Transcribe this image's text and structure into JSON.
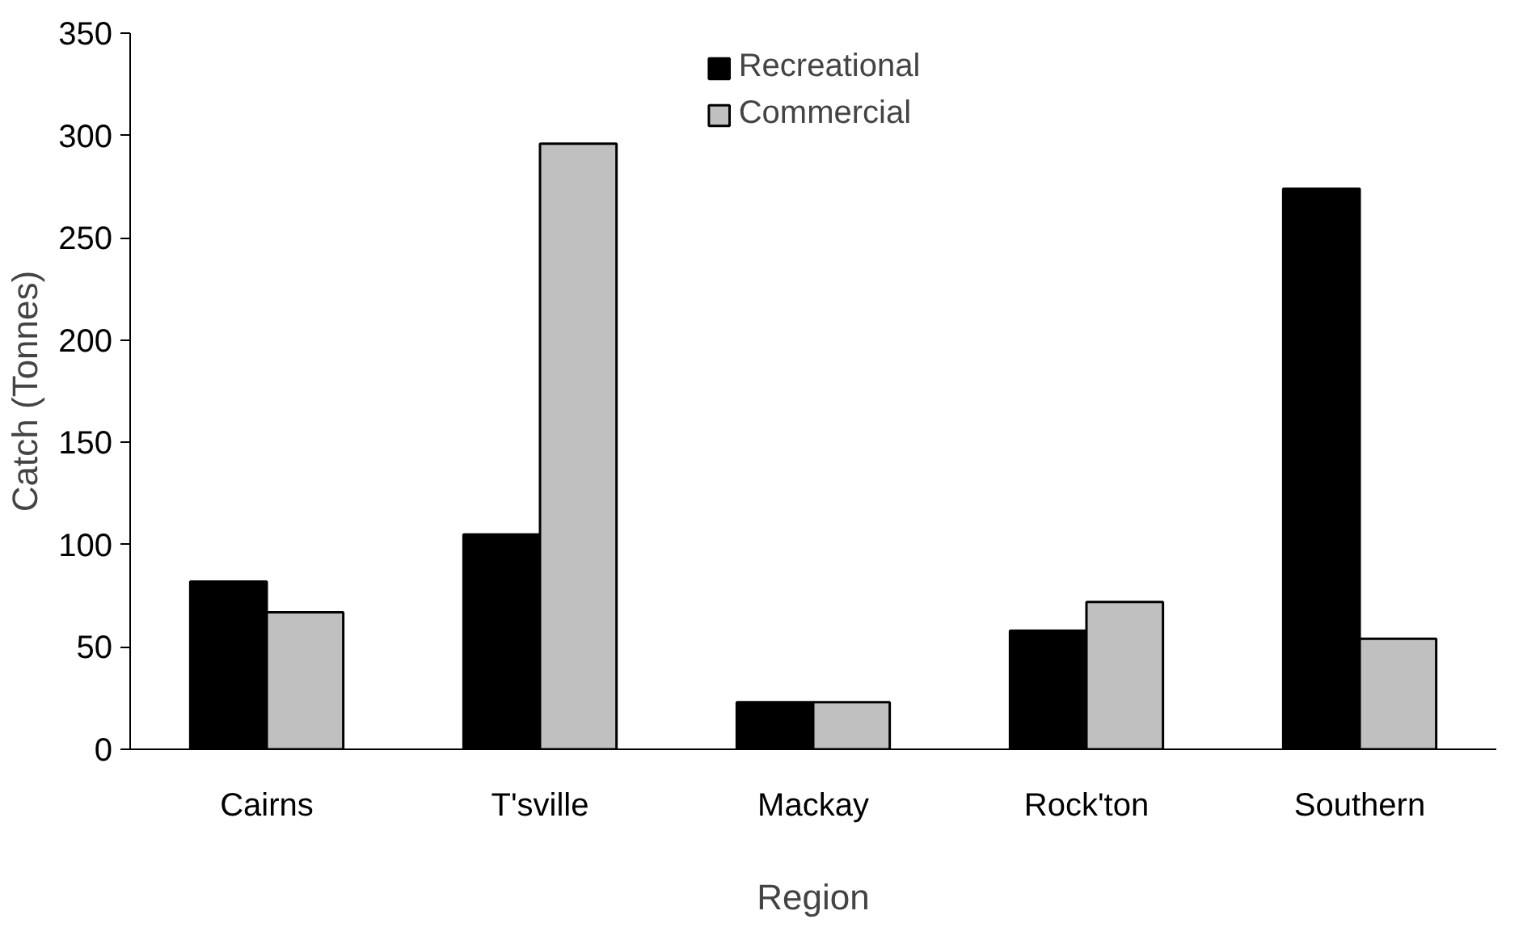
{
  "chart_data": {
    "type": "bar",
    "xlabel": "Region",
    "ylabel": "Catch (Tonnes)",
    "categories": [
      "Cairns",
      "T'sville",
      "Mackay",
      "Rock'ton",
      "Southern"
    ],
    "series": [
      {
        "name": "Recreational",
        "color": "#000000",
        "values": [
          82,
          105,
          23,
          58,
          274
        ]
      },
      {
        "name": "Commercial",
        "color": "#c0c0c0",
        "values": [
          67,
          296,
          23,
          72,
          54
        ]
      }
    ],
    "ylim": [
      0,
      350
    ],
    "yticks": [
      0,
      50,
      100,
      150,
      200,
      250,
      300,
      350
    ],
    "grid": false,
    "legend": "top"
  }
}
